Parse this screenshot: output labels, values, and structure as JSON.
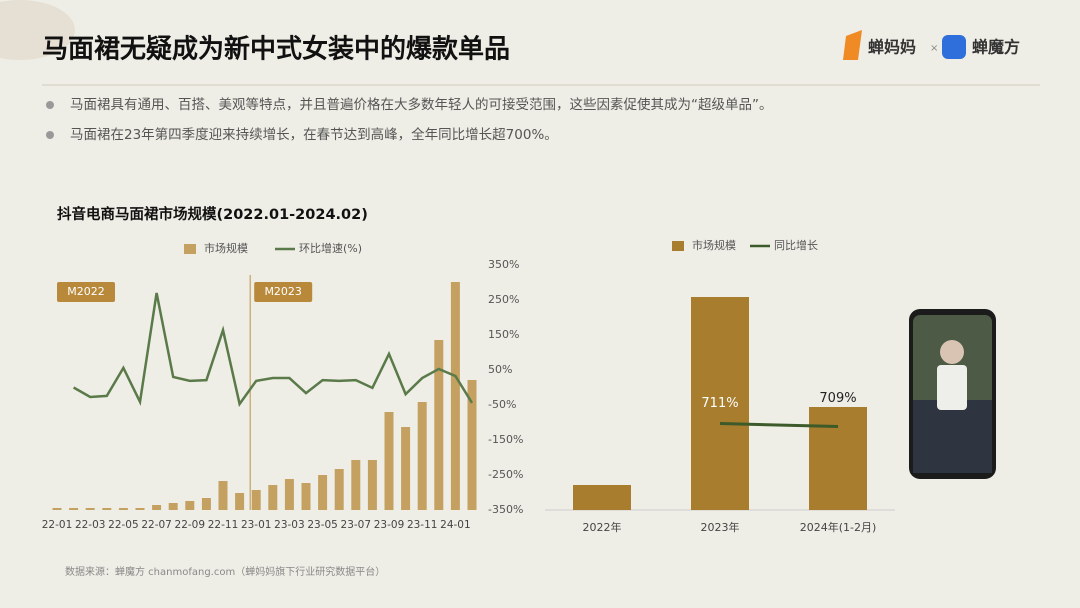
{
  "title": "马面裙无疑成为新中式女装中的爆款单品",
  "logos": [
    "蝉妈妈",
    "蝉魔方"
  ],
  "bullets": [
    "马面裙具有通用、百搭、美观等特点，并且普遍价格在大多数年轻人的可接受范围，这些因素促使其成为“超级单品”。",
    "马面裙在23年第四季度迎来持续增长，在春节达到高峰，全年同比增长超700%。"
  ],
  "source": "数据来源：蝉魔方 chanmofang.com（蝉妈妈旗下行业研究数据平台）",
  "chart_data": [
    {
      "type": "bar-line",
      "title": "抖音电商马面裙市场规模(2022.01-2024.02)",
      "categories": [
        "22-01",
        null,
        "22-03",
        null,
        "22-05",
        null,
        "22-07",
        null,
        "22-09",
        null,
        "22-11",
        null,
        "23-01",
        null,
        "23-03",
        null,
        "23-05",
        null,
        "23-07",
        null,
        "23-09",
        null,
        "23-11",
        null,
        "24-01",
        null
      ],
      "series": [
        {
          "name": "市场规模",
          "color": "#c4a061",
          "values": [
            2,
            2,
            2,
            2,
            2,
            2,
            5,
            7,
            9,
            12,
            29,
            17,
            20,
            25,
            31,
            27,
            35,
            41,
            50,
            50,
            98,
            83,
            108,
            170,
            228,
            130
          ]
        },
        {
          "name": "环比增速(%)",
          "color": "#5a7a4a",
          "axis": "y2",
          "values": [
            null,
            0,
            -27,
            -24,
            56,
            -41,
            270,
            30,
            19,
            21,
            164,
            -47,
            19,
            27,
            27,
            -16,
            21,
            19,
            21,
            -1,
            96,
            -19,
            27,
            53,
            33,
            -44
          ]
        }
      ],
      "y2lim": [
        -350,
        350
      ],
      "y2ticks": [
        {
          "value": 350,
          "label": "350%"
        },
        {
          "value": 250,
          "label": "250%"
        },
        {
          "value": 150,
          "label": "150%"
        },
        {
          "value": 50,
          "label": "50%"
        },
        {
          "value": -50,
          "label": "-50%"
        },
        {
          "value": -150,
          "label": "-150%"
        },
        {
          "value": -250,
          "label": "-250%"
        },
        {
          "value": -350,
          "label": "-350%"
        }
      ],
      "annotations": [
        "M2022",
        "M2023"
      ]
    },
    {
      "type": "bar-line",
      "categories": [
        "2022年",
        "2023年",
        "2024年(1-2月)"
      ],
      "series": [
        {
          "name": "市场规模",
          "color": "#a87d2e",
          "values": [
            25,
            213,
            103
          ]
        },
        {
          "name": "同比增长",
          "color": "#3d5a2a",
          "values": [
            null,
            711,
            709
          ],
          "value_labels": [
            null,
            "711%",
            "709%"
          ]
        }
      ]
    }
  ]
}
